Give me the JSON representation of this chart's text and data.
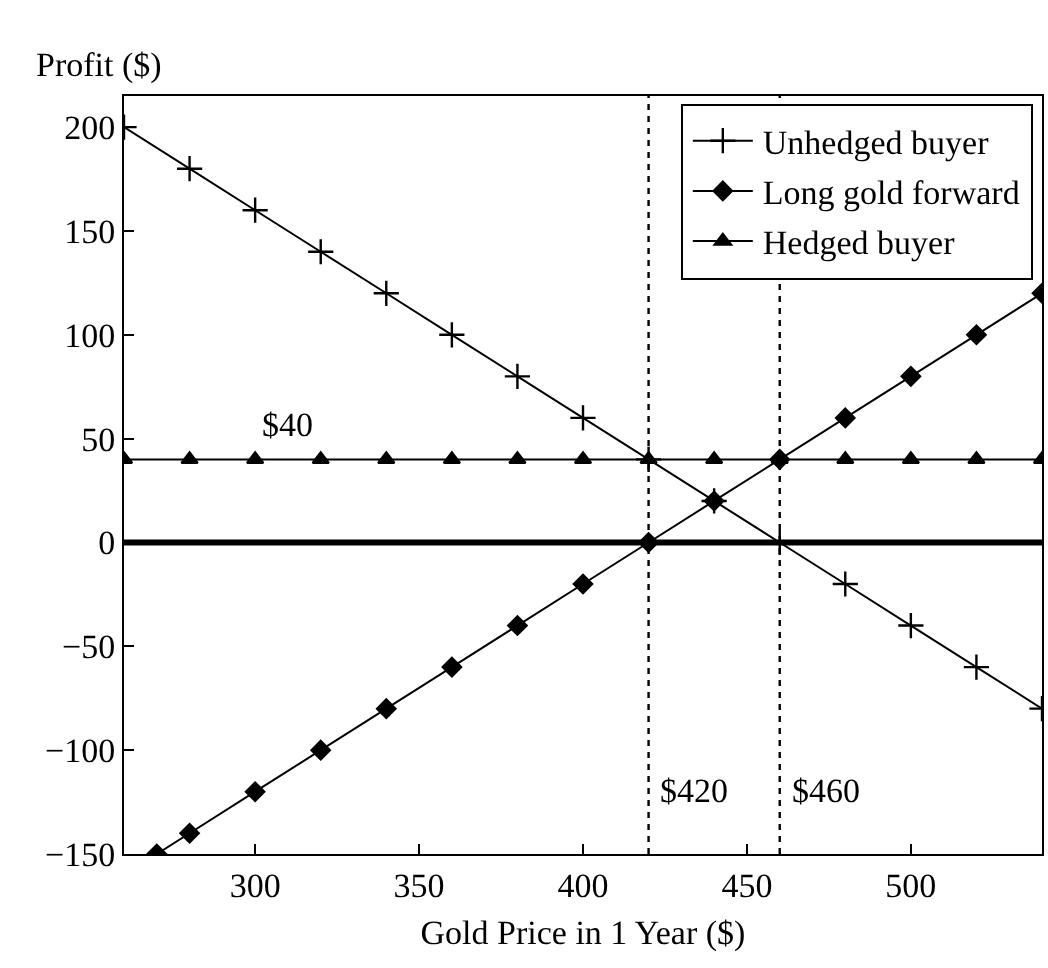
{
  "chart_data": {
    "type": "line",
    "xlabel": "Gold Price in 1 Year ($)",
    "ylabel": "Profit ($)",
    "xlim": [
      260,
      540
    ],
    "xticks": [
      300,
      350,
      400,
      450,
      500
    ],
    "ylim": [
      -150,
      215
    ],
    "yticks": [
      -150,
      -100,
      -50,
      0,
      50,
      100,
      150,
      200
    ],
    "grid": false,
    "legend": "top right",
    "line_style": "solid",
    "series": [
      {
        "name": "Unhedged buyer",
        "color": "#000000",
        "marker": "cross",
        "x": [
          260,
          280,
          300,
          320,
          340,
          360,
          380,
          400,
          420,
          440,
          460,
          480,
          500,
          520,
          540
        ],
        "values": [
          200,
          180,
          160,
          140,
          120,
          100,
          80,
          60,
          40,
          20,
          0,
          -20,
          -40,
          -60,
          -80
        ]
      },
      {
        "name": "Long gold forward",
        "color": "#000000",
        "marker": "diamond",
        "x": [
          270,
          280,
          300,
          320,
          340,
          360,
          380,
          400,
          420,
          440,
          460,
          480,
          500,
          520,
          540
        ],
        "values": [
          -150,
          -140,
          -120,
          -100,
          -80,
          -60,
          -40,
          -20,
          0,
          20,
          40,
          60,
          80,
          100,
          120
        ]
      },
      {
        "name": "Hedged buyer",
        "color": "#000000",
        "marker": "triangle",
        "x": [
          260,
          280,
          300,
          320,
          340,
          360,
          380,
          400,
          420,
          440,
          460,
          480,
          500,
          520,
          540
        ],
        "values": [
          40,
          40,
          40,
          40,
          40,
          40,
          40,
          40,
          40,
          40,
          40,
          40,
          40,
          40,
          40
        ]
      }
    ],
    "ref_lines": [
      {
        "axis": "y",
        "value": 0,
        "label": null,
        "color": "#000000",
        "line_style": "solid"
      },
      {
        "axis": "x",
        "value": 420,
        "label": "$420",
        "color": "#000000",
        "line_style": "dotted"
      },
      {
        "axis": "x",
        "value": 460,
        "label": "$460",
        "color": "#000000",
        "line_style": "dotted"
      }
    ],
    "annotations": [
      {
        "text": "$40",
        "x": 310,
        "y": 40
      }
    ]
  }
}
